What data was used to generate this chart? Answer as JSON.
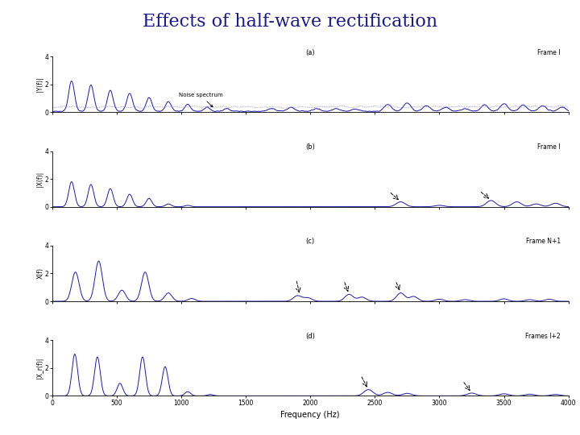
{
  "title": "Effects of half-wave rectification",
  "title_color": "#1a1a8c",
  "title_fontsize": 16,
  "background_color": "#ffffff",
  "line_color": "#1a1aaa",
  "dashed_color": "#8888bb",
  "subplot_labels": [
    "(a)",
    "(b)",
    "(c)",
    "(d)"
  ],
  "frame_labels": [
    "Frame l",
    "Frame l",
    "Frame N+1",
    "Frames l+2"
  ],
  "ylabels": [
    "|Y(f)|",
    "|X(f)|",
    "X(f)",
    "|X_r(f)|"
  ],
  "xlabel": "Frequency (Hz)",
  "xlim": [
    0,
    4000
  ],
  "ylim": [
    0,
    4
  ],
  "yticks": [
    0,
    2,
    4
  ],
  "xticks": [
    0,
    500,
    1000,
    1500,
    2000,
    2500,
    3000,
    3500,
    4000
  ]
}
